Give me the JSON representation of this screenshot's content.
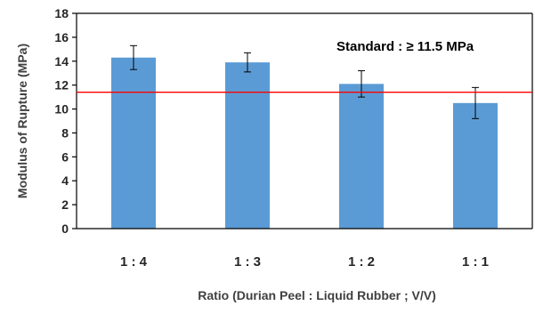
{
  "chart_data": {
    "type": "bar",
    "title": "",
    "xlabel": "Ratio (Durian Peel : Liquid Rubber ; V/V)",
    "ylabel": "Modulus of Rupture (MPa)",
    "categories": [
      "1 : 4",
      "1 : 3",
      "1 : 2",
      "1 : 1"
    ],
    "values": [
      14.3,
      13.9,
      12.1,
      10.5
    ],
    "error": [
      1.0,
      0.8,
      1.1,
      1.3
    ],
    "ylim": [
      0,
      18
    ],
    "yticks": [
      0,
      2,
      4,
      6,
      8,
      10,
      12,
      14,
      16,
      18
    ],
    "reference_line": {
      "value": 11.4,
      "color": "#ff0000"
    },
    "annotation": "Standard : ≥ 11.5 MPa",
    "bar_color": "#5b9bd5",
    "grid": false,
    "legend": "none"
  }
}
